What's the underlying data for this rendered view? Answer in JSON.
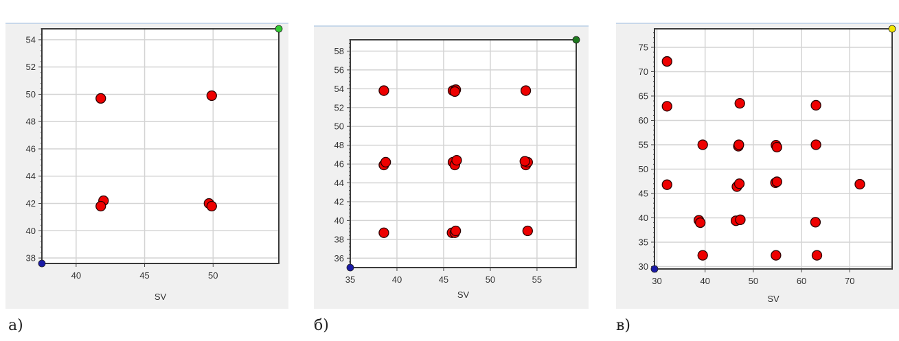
{
  "chart_data": [
    {
      "type": "scatter",
      "caption": "а)",
      "xlabel": "SV",
      "ylabel": "",
      "xlim": [
        37.5,
        54.8
      ],
      "ylim": [
        37.6,
        54.8
      ],
      "xticks": [
        40,
        45,
        50
      ],
      "yticks": [
        38,
        40,
        42,
        44,
        46,
        48,
        50,
        52,
        54
      ],
      "grid": true,
      "point_color": "#ee0000",
      "corner_markers": [
        {
          "x": 37.5,
          "y": 37.6,
          "color": "#1a1aa6"
        },
        {
          "x": 54.8,
          "y": 54.8,
          "color": "#33cc33"
        }
      ],
      "points": [
        {
          "x": 41.8,
          "y": 49.7
        },
        {
          "x": 49.9,
          "y": 49.9
        },
        {
          "x": 42.0,
          "y": 42.2
        },
        {
          "x": 41.8,
          "y": 41.8
        },
        {
          "x": 49.7,
          "y": 42.0
        },
        {
          "x": 49.9,
          "y": 41.8
        }
      ]
    },
    {
      "type": "scatter",
      "caption": "б)",
      "xlabel": "SV",
      "ylabel": "",
      "xlim": [
        35,
        59.2
      ],
      "ylim": [
        35,
        59.2
      ],
      "xticks": [
        35,
        40,
        45,
        50,
        55
      ],
      "yticks": [
        36,
        38,
        40,
        42,
        44,
        46,
        48,
        50,
        52,
        54,
        56,
        58
      ],
      "grid": true,
      "point_color": "#ee0000",
      "corner_markers": [
        {
          "x": 35,
          "y": 35,
          "color": "#1a1aa6"
        },
        {
          "x": 59.2,
          "y": 59.2,
          "color": "#1f7a1f"
        }
      ],
      "points": [
        {
          "x": 38.6,
          "y": 53.8
        },
        {
          "x": 46.0,
          "y": 53.8
        },
        {
          "x": 46.3,
          "y": 53.9
        },
        {
          "x": 46.2,
          "y": 53.7
        },
        {
          "x": 53.8,
          "y": 53.8
        },
        {
          "x": 38.6,
          "y": 45.9
        },
        {
          "x": 38.8,
          "y": 46.2
        },
        {
          "x": 46.0,
          "y": 46.2
        },
        {
          "x": 46.2,
          "y": 45.9
        },
        {
          "x": 46.4,
          "y": 46.4
        },
        {
          "x": 53.8,
          "y": 45.9
        },
        {
          "x": 54.0,
          "y": 46.2
        },
        {
          "x": 53.7,
          "y": 46.3
        },
        {
          "x": 38.6,
          "y": 38.7
        },
        {
          "x": 45.9,
          "y": 38.7
        },
        {
          "x": 46.2,
          "y": 38.7
        },
        {
          "x": 46.3,
          "y": 38.9
        },
        {
          "x": 54.0,
          "y": 38.9
        }
      ]
    },
    {
      "type": "scatter",
      "caption": "в)",
      "xlabel": "SV",
      "ylabel": "",
      "xlim": [
        29.5,
        78.8
      ],
      "ylim": [
        29.5,
        78.8
      ],
      "xticks": [
        30,
        40,
        50,
        60,
        70
      ],
      "yticks": [
        30,
        35,
        40,
        45,
        50,
        55,
        60,
        65,
        70,
        75
      ],
      "grid": true,
      "point_color": "#ee0000",
      "corner_markers": [
        {
          "x": 29.5,
          "y": 29.5,
          "color": "#1a1aa6"
        },
        {
          "x": 78.8,
          "y": 78.8,
          "color": "#f2e600"
        }
      ],
      "points": [
        {
          "x": 32.1,
          "y": 72.1
        },
        {
          "x": 32.1,
          "y": 62.9
        },
        {
          "x": 47.2,
          "y": 63.5
        },
        {
          "x": 63.0,
          "y": 63.1
        },
        {
          "x": 39.5,
          "y": 55.0
        },
        {
          "x": 46.9,
          "y": 54.7
        },
        {
          "x": 47.0,
          "y": 55.0
        },
        {
          "x": 54.7,
          "y": 54.9
        },
        {
          "x": 54.9,
          "y": 54.5
        },
        {
          "x": 63.0,
          "y": 55.0
        },
        {
          "x": 32.1,
          "y": 46.8
        },
        {
          "x": 46.6,
          "y": 46.4
        },
        {
          "x": 47.1,
          "y": 47.0
        },
        {
          "x": 54.6,
          "y": 47.2
        },
        {
          "x": 54.9,
          "y": 47.4
        },
        {
          "x": 72.1,
          "y": 46.9
        },
        {
          "x": 38.7,
          "y": 39.5
        },
        {
          "x": 39.0,
          "y": 39.0
        },
        {
          "x": 46.4,
          "y": 39.4
        },
        {
          "x": 47.3,
          "y": 39.6
        },
        {
          "x": 62.9,
          "y": 39.1
        },
        {
          "x": 39.5,
          "y": 32.3
        },
        {
          "x": 54.7,
          "y": 32.3
        },
        {
          "x": 63.2,
          "y": 32.3
        }
      ]
    }
  ]
}
